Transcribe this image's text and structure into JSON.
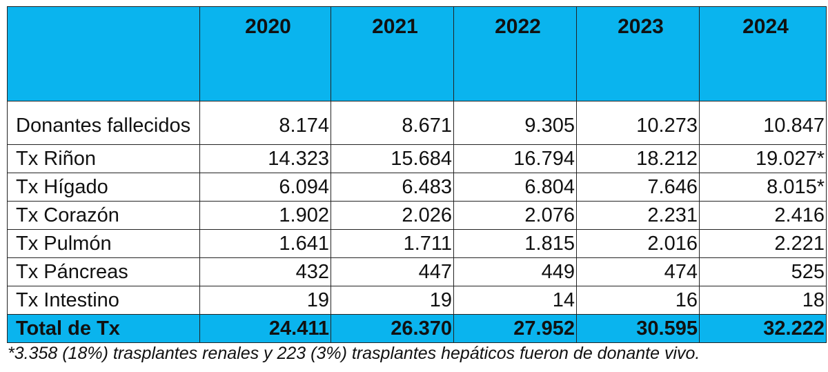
{
  "table": {
    "header": {
      "corner": "",
      "years": [
        "2020",
        "2021",
        "2022",
        "2023",
        "2024"
      ]
    },
    "rows": [
      {
        "label": "Donantes fallecidos",
        "values": [
          "8.174",
          "8.671",
          "9.305",
          "10.273",
          "10.847"
        ]
      },
      {
        "label": "Tx Riñon",
        "values": [
          "14.323",
          "15.684",
          "16.794",
          "18.212",
          "19.027*"
        ]
      },
      {
        "label": "Tx Hígado",
        "values": [
          "6.094",
          "6.483",
          "6.804",
          "7.646",
          "8.015*"
        ]
      },
      {
        "label": "Tx Corazón",
        "values": [
          "1.902",
          "2.026",
          "2.076",
          "2.231",
          "2.416"
        ]
      },
      {
        "label": "Tx Pulmón",
        "values": [
          "1.641",
          "1.711",
          "1.815",
          "2.016",
          "2.221"
        ]
      },
      {
        "label": "Tx Páncreas",
        "values": [
          "432",
          "447",
          "449",
          "474",
          "525"
        ]
      },
      {
        "label": "Tx Intestino",
        "values": [
          "19",
          "19",
          "14",
          "16",
          "18"
        ]
      }
    ],
    "total": {
      "label": "Total de Tx",
      "values": [
        "24.411",
        "26.370",
        "27.952",
        "30.595",
        "32.222"
      ]
    }
  },
  "footnote": "*3.358 (18%) trasplantes renales y 223 (3%) trasplantes hepáticos fueron de donante vivo.",
  "colors": {
    "header_background": "#0AB4EE",
    "total_background": "#0AB4EE",
    "border": "#222222"
  }
}
